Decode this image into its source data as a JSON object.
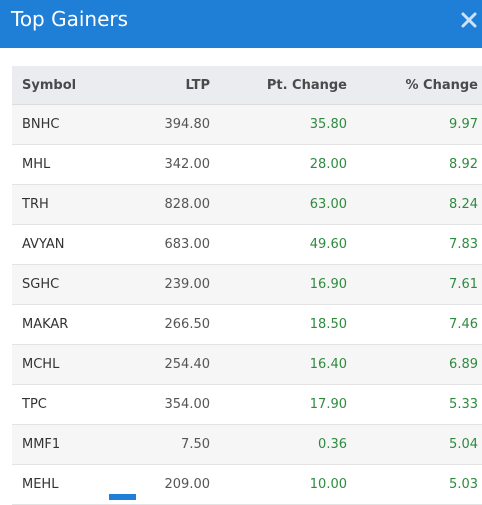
{
  "header": {
    "title": "Top Gainers",
    "close_icon": "close-icon",
    "color": "#1f7fd6"
  },
  "table": {
    "columns": [
      "Symbol",
      "LTP",
      "Pt. Change",
      "% Change"
    ],
    "rows": [
      [
        "BNHC",
        "394.80",
        "35.80",
        "9.97"
      ],
      [
        "MHL",
        "342.00",
        "28.00",
        "8.92"
      ],
      [
        "TRH",
        "828.00",
        "63.00",
        "8.24"
      ],
      [
        "AVYAN",
        "683.00",
        "49.60",
        "7.83"
      ],
      [
        "SGHC",
        "239.00",
        "16.90",
        "7.61"
      ],
      [
        "MAKAR",
        "266.50",
        "18.50",
        "7.46"
      ],
      [
        "MCHL",
        "254.40",
        "16.40",
        "6.89"
      ],
      [
        "TPC",
        "354.00",
        "17.90",
        "5.33"
      ],
      [
        "MMF1",
        "7.50",
        "0.36",
        "5.04"
      ],
      [
        "MEHL",
        "209.00",
        "10.00",
        "5.03"
      ]
    ],
    "gain_color": "#2e8b3e"
  }
}
